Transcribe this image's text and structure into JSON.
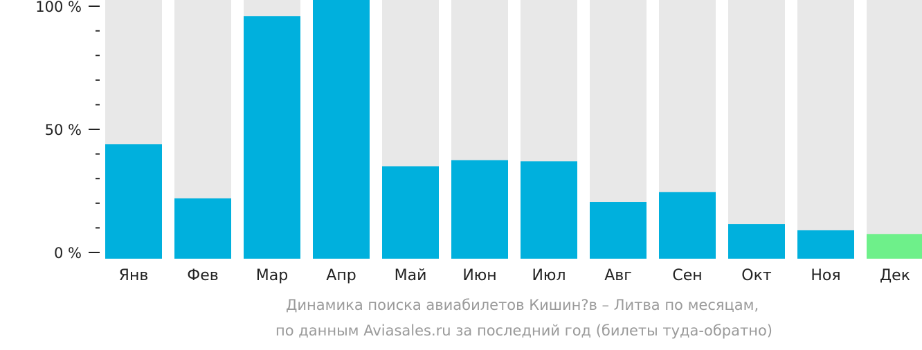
{
  "chart_data": {
    "type": "bar",
    "categories": [
      "Янв",
      "Фев",
      "Мар",
      "Апр",
      "Май",
      "Июн",
      "Июл",
      "Авг",
      "Сен",
      "Окт",
      "Ноя",
      "Дек"
    ],
    "values": [
      44,
      22,
      96,
      105,
      35,
      37.5,
      37,
      20.5,
      24.5,
      11.5,
      9,
      7.5
    ],
    "ylim": [
      0,
      100
    ],
    "y_ticks": [
      "0 %",
      "50 %",
      "100 %"
    ],
    "grid": false,
    "colors": {
      "bar": "#00b0dd",
      "highlight_bar": "#6ef08a",
      "background_bar": "#e8e8e8",
      "axis": "#222222"
    },
    "highlight_index": 11
  },
  "caption": {
    "line1": "Динамика поиска авиабилетов Кишин?в – Литва по месяцам,",
    "line2": "по данным Aviasales.ru за последний год (билеты туда-обратно)"
  }
}
